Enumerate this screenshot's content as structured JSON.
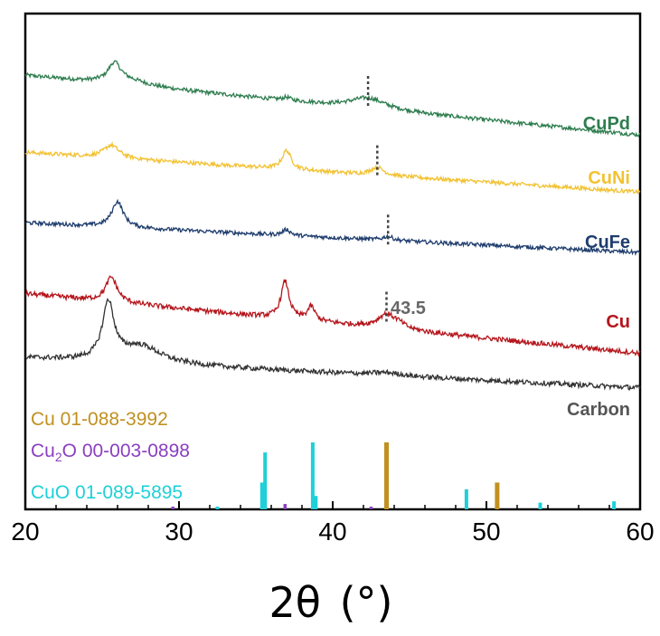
{
  "chart_data": {
    "type": "line",
    "title": "",
    "xlabel": "2θ (°)",
    "ylabel": "",
    "xlim": [
      20,
      60
    ],
    "xticks": [
      "20",
      "30",
      "40",
      "50",
      "60"
    ],
    "grid": false,
    "series": [
      {
        "name": "CuPd",
        "color": "#2e7d4f",
        "baseline": 0.875,
        "slope": 0.003,
        "noise": 0.004,
        "peaks": [
          [
            25.8,
            0.038,
            0.5
          ],
          [
            26.8,
            0.01,
            1.5
          ],
          [
            37.0,
            0.006,
            0.3
          ],
          [
            42.3,
            0.022,
            1.4
          ]
        ]
      },
      {
        "name": "CuNi",
        "color": "#f2c232",
        "baseline": 0.72,
        "slope": 0.002,
        "noise": 0.004,
        "peaks": [
          [
            25.6,
            0.026,
            0.6
          ],
          [
            37.0,
            0.038,
            0.35
          ],
          [
            42.9,
            0.016,
            0.5
          ]
        ]
      },
      {
        "name": "CuFe",
        "color": "#1f3d6e",
        "baseline": 0.578,
        "slope": 0.0015,
        "noise": 0.004,
        "peaks": [
          [
            26.0,
            0.052,
            0.45
          ],
          [
            37.0,
            0.012,
            0.3
          ],
          [
            43.6,
            0.008,
            0.4
          ]
        ]
      },
      {
        "name": "Cu",
        "color": "#b5161c",
        "baseline": 0.435,
        "slope": 0.003,
        "noise": 0.005,
        "peaks": [
          [
            25.6,
            0.05,
            0.45
          ],
          [
            36.9,
            0.075,
            0.32
          ],
          [
            38.6,
            0.028,
            0.3
          ],
          [
            43.5,
            0.028,
            0.7
          ],
          [
            44.3,
            0.008,
            0.5
          ]
        ]
      },
      {
        "name": "Carbon",
        "color": "#333333",
        "baseline": 0.305,
        "slope": 0.0015,
        "noise": 0.005,
        "peaks": [
          [
            25.4,
            0.115,
            0.45
          ],
          [
            27.5,
            0.035,
            1.6
          ],
          [
            43.5,
            0.006,
            1.2
          ]
        ]
      }
    ],
    "reference_patterns": [
      {
        "name": "Cu 01-088-3992",
        "color": "#c09020",
        "positions": [
          43.5,
          50.7
        ],
        "intensities": [
          100,
          40
        ]
      },
      {
        "name": "Cu₂O 00-003-0898",
        "color": "#8a3fbf",
        "positions": [
          29.6,
          36.9,
          42.5
        ],
        "intensities": [
          4,
          8,
          3
        ]
      },
      {
        "name": "CuO 01-089-5895",
        "color": "#1fd0d8",
        "positions": [
          32.5,
          35.4,
          35.6,
          38.7,
          38.9,
          48.7,
          53.5,
          58.3
        ],
        "intensities": [
          3,
          40,
          85,
          100,
          20,
          30,
          10,
          12
        ]
      }
    ],
    "annotations": [
      {
        "text": "43.5",
        "x": 43.5,
        "series": "Cu"
      }
    ],
    "peak_markers": [
      {
        "series": "CuPd",
        "x": 42.3
      },
      {
        "series": "CuNi",
        "x": 42.9
      },
      {
        "series": "CuFe",
        "x": 43.6
      },
      {
        "series": "Cu",
        "x": 43.5
      }
    ]
  },
  "legend": {
    "ref_cu": "Cu 01-088-3992",
    "ref_cu2o_a": "Cu",
    "ref_cu2o_sub": "2",
    "ref_cu2o_b": "O 00-003-0898",
    "ref_cuo": "CuO  01-089-5895"
  },
  "labels": {
    "cupd": "CuPd",
    "cuni": "CuNi",
    "cufe": "CuFe",
    "cu": "Cu",
    "carbon": "Carbon",
    "peak": "43.5",
    "xaxis_a": "2θ",
    "xaxis_b": "(°)"
  },
  "ticks": {
    "t20": "20",
    "t30": "30",
    "t40": "40",
    "t50": "50",
    "t60": "60"
  }
}
